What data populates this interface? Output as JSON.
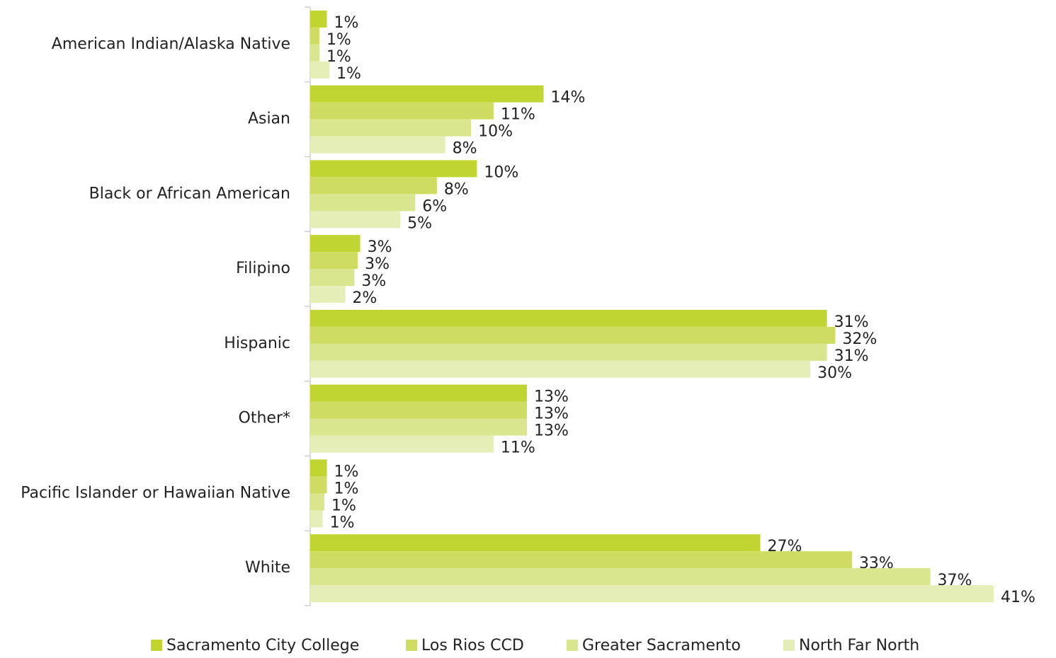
{
  "chart_data": {
    "type": "bar",
    "orientation": "horizontal",
    "categories": [
      "American Indian/Alaska Native",
      "Asian",
      "Black or African American",
      "Filipino",
      "Hispanic",
      "Other*",
      "Pacific Islander or Hawaiian Native",
      "White"
    ],
    "series": [
      {
        "name": "Sacramento City College",
        "color": "#c1d532",
        "values": [
          1.0,
          14.0,
          10.0,
          3.0,
          31.0,
          13.0,
          1.0,
          27.0
        ],
        "value_labels": [
          "1%",
          "14%",
          "10%",
          "3%",
          "31%",
          "13%",
          "1%",
          "27%"
        ]
      },
      {
        "name": "Los Rios CCD",
        "color": "#cedd62",
        "values": [
          0.55,
          11.0,
          7.6,
          2.85,
          31.5,
          13.0,
          1.0,
          32.5
        ],
        "value_labels": [
          "1%",
          "11%",
          "8%",
          "3%",
          "32%",
          "13%",
          "1%",
          "33%"
        ]
      },
      {
        "name": "Greater Sacramento",
        "color": "#d9e68d",
        "values": [
          0.55,
          9.65,
          6.3,
          2.65,
          31.0,
          13.0,
          0.85,
          37.2
        ],
        "value_labels": [
          "1%",
          "10%",
          "6%",
          "3%",
          "31%",
          "13%",
          "1%",
          "37%"
        ]
      },
      {
        "name": "North Far North",
        "color": "#e5eeb6",
        "values": [
          1.15,
          8.1,
          5.4,
          2.1,
          30.0,
          11.0,
          0.75,
          41.0
        ],
        "value_labels": [
          "1%",
          "8%",
          "5%",
          "2%",
          "30%",
          "11%",
          "1%",
          "41%"
        ]
      }
    ],
    "legend": "bottom"
  }
}
